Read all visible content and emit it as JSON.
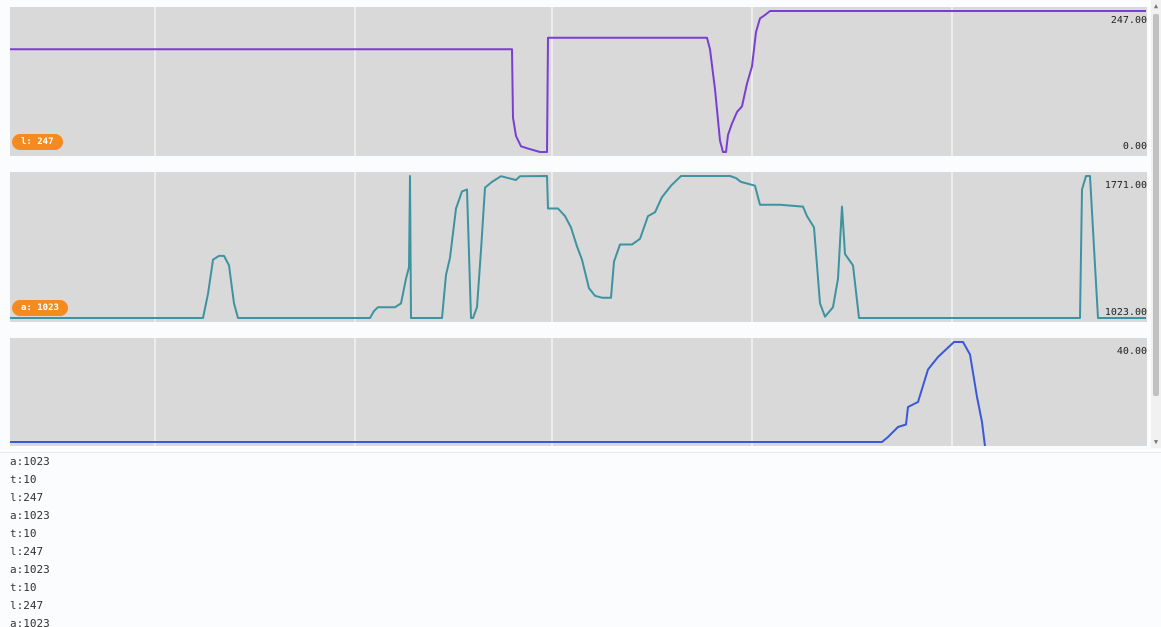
{
  "chart_data": [
    {
      "type": "line",
      "series": [
        {
          "name": "l",
          "color": "#7a3fd0"
        }
      ],
      "ylim": [
        0,
        247
      ],
      "y_max_label": "247.00",
      "y_min_label": "0.00",
      "badge": "l: 247",
      "grid": true,
      "values": [
        [
          0,
          180
        ],
        [
          100,
          180
        ],
        [
          200,
          180
        ],
        [
          300,
          180
        ],
        [
          400,
          180
        ],
        [
          502,
          180
        ],
        [
          503,
          60
        ],
        [
          506,
          28
        ],
        [
          511,
          10
        ],
        [
          518,
          6
        ],
        [
          530,
          0
        ],
        [
          537,
          0
        ],
        [
          538,
          200
        ],
        [
          600,
          200
        ],
        [
          660,
          200
        ],
        [
          697,
          200
        ],
        [
          700,
          180
        ],
        [
          705,
          110
        ],
        [
          710,
          20
        ],
        [
          713,
          0
        ],
        [
          716,
          0
        ],
        [
          718,
          30
        ],
        [
          722,
          50
        ],
        [
          727,
          70
        ],
        [
          732,
          80
        ],
        [
          737,
          120
        ],
        [
          742,
          150
        ],
        [
          746,
          210
        ],
        [
          750,
          234
        ],
        [
          755,
          240
        ],
        [
          760,
          247
        ],
        [
          800,
          247
        ],
        [
          900,
          247
        ],
        [
          1000,
          247
        ],
        [
          1100,
          247
        ],
        [
          1136,
          247
        ]
      ]
    },
    {
      "type": "line",
      "series": [
        {
          "name": "a",
          "color": "#3e93a0"
        }
      ],
      "ylim": [
        1023,
        1771
      ],
      "y_max_label": "1771.00",
      "y_min_label": "1023.00",
      "badge": "a: 1023",
      "grid": true,
      "values": [
        [
          0,
          1023
        ],
        [
          100,
          1023
        ],
        [
          193,
          1023
        ],
        [
          198,
          1150
        ],
        [
          203,
          1330
        ],
        [
          209,
          1350
        ],
        [
          214,
          1350
        ],
        [
          219,
          1300
        ],
        [
          224,
          1100
        ],
        [
          228,
          1023
        ],
        [
          300,
          1023
        ],
        [
          360,
          1023
        ],
        [
          364,
          1060
        ],
        [
          368,
          1080
        ],
        [
          385,
          1080
        ],
        [
          391,
          1100
        ],
        [
          396,
          1230
        ],
        [
          399,
          1290
        ],
        [
          400,
          1771
        ],
        [
          401,
          1023
        ],
        [
          420,
          1023
        ],
        [
          432,
          1023
        ],
        [
          436,
          1250
        ],
        [
          440,
          1340
        ],
        [
          446,
          1600
        ],
        [
          452,
          1690
        ],
        [
          457,
          1700
        ],
        [
          461,
          1023
        ],
        [
          463,
          1023
        ],
        [
          467,
          1080
        ],
        [
          471,
          1380
        ],
        [
          475,
          1710
        ],
        [
          482,
          1740
        ],
        [
          491,
          1770
        ],
        [
          506,
          1750
        ],
        [
          510,
          1770
        ],
        [
          537,
          1771
        ],
        [
          538,
          1600
        ],
        [
          548,
          1600
        ],
        [
          555,
          1560
        ],
        [
          561,
          1500
        ],
        [
          567,
          1400
        ],
        [
          572,
          1330
        ],
        [
          579,
          1180
        ],
        [
          585,
          1140
        ],
        [
          592,
          1130
        ],
        [
          601,
          1130
        ],
        [
          604,
          1320
        ],
        [
          610,
          1410
        ],
        [
          622,
          1410
        ],
        [
          630,
          1440
        ],
        [
          638,
          1560
        ],
        [
          645,
          1580
        ],
        [
          652,
          1660
        ],
        [
          661,
          1720
        ],
        [
          671,
          1771
        ],
        [
          720,
          1771
        ],
        [
          726,
          1760
        ],
        [
          731,
          1740
        ],
        [
          745,
          1720
        ],
        [
          750,
          1620
        ],
        [
          770,
          1620
        ],
        [
          793,
          1610
        ],
        [
          797,
          1560
        ],
        [
          804,
          1500
        ],
        [
          810,
          1100
        ],
        [
          815,
          1030
        ],
        [
          823,
          1080
        ],
        [
          828,
          1230
        ],
        [
          832,
          1610
        ],
        [
          835,
          1360
        ],
        [
          843,
          1300
        ],
        [
          849,
          1023
        ],
        [
          940,
          1023
        ],
        [
          1070,
          1023
        ],
        [
          1072,
          1700
        ],
        [
          1076,
          1771
        ],
        [
          1080,
          1771
        ],
        [
          1085,
          1300
        ],
        [
          1088,
          1023
        ],
        [
          1136,
          1023
        ]
      ]
    },
    {
      "type": "line",
      "series": [
        {
          "name": "t",
          "color": "#3a59d6"
        }
      ],
      "ylim": [
        0,
        40
      ],
      "y_max_label": "40.00",
      "y_min_label": "",
      "grid": true,
      "values": [
        [
          0,
          0
        ],
        [
          200,
          0
        ],
        [
          400,
          0
        ],
        [
          600,
          0
        ],
        [
          800,
          0
        ],
        [
          872,
          0
        ],
        [
          878,
          2
        ],
        [
          888,
          6
        ],
        [
          896,
          7
        ],
        [
          898,
          14
        ],
        [
          908,
          16
        ],
        [
          918,
          29
        ],
        [
          928,
          34
        ],
        [
          936,
          37
        ],
        [
          944,
          40
        ],
        [
          953,
          40
        ],
        [
          960,
          35
        ],
        [
          967,
          18
        ],
        [
          972,
          8
        ],
        [
          976,
          -5
        ]
      ]
    }
  ],
  "console": {
    "lines": [
      "a:1023",
      "t:10",
      "l:247",
      "a:1023",
      "t:10",
      "l:247",
      "a:1023",
      "t:10",
      "l:247",
      "a:1023"
    ]
  },
  "scrollbar": {
    "up_arrow": "▲",
    "down_arrow": "▼"
  }
}
